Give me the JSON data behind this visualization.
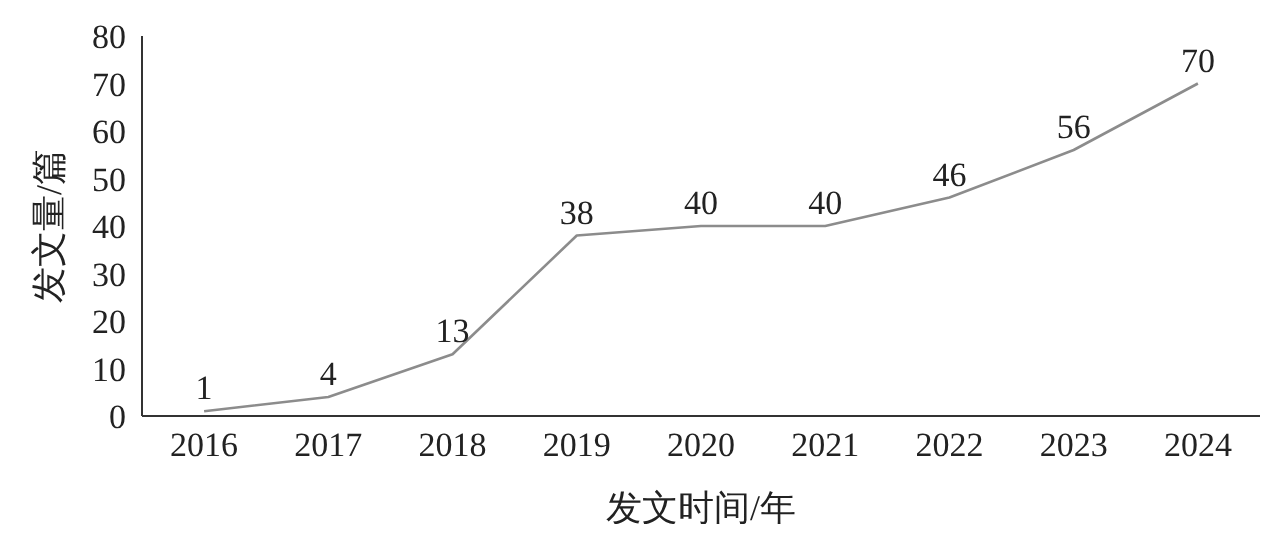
{
  "chart_data": {
    "type": "line",
    "xlabel": "发文时间/年",
    "ylabel": "发文量/篇",
    "categories": [
      "2016",
      "2017",
      "2018",
      "2019",
      "2020",
      "2021",
      "2022",
      "2023",
      "2024"
    ],
    "series": [
      {
        "color": "#8c8c8c",
        "values": [
          1,
          4,
          13,
          38,
          40,
          40,
          46,
          56,
          70
        ]
      }
    ],
    "ylim": [
      0,
      80
    ],
    "yticks": [
      0,
      10,
      20,
      30,
      40,
      50,
      60,
      70,
      80
    ],
    "grid": false,
    "legend": false,
    "marker": "none",
    "line_style": "solid",
    "data_labels": true
  }
}
